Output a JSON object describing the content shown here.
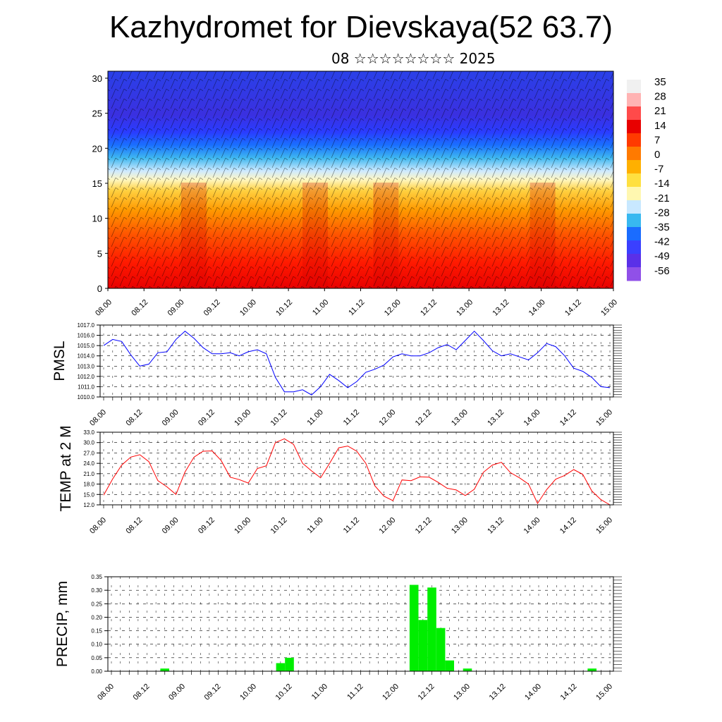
{
  "title": "Kazhydromet for Dievskaya(52 63.7)",
  "subtitle": "08 ☆☆☆☆☆☆☆☆ 2025",
  "chart_data": [
    {
      "type": "heatmap",
      "title": "",
      "x_ticks": [
        "08.00",
        "08.12",
        "09.00",
        "09.12",
        "10.00",
        "10.12",
        "11.00",
        "11.12",
        "12.00",
        "12.12",
        "13.00",
        "13.12",
        "14.00",
        "14.12",
        "15.00"
      ],
      "ylim": [
        0,
        31
      ],
      "y_ticks": [
        "0",
        "5",
        "10",
        "15",
        "20",
        "25",
        "30"
      ],
      "colorbar_labels": [
        "35",
        "28",
        "21",
        "14",
        "7",
        "0",
        "-7",
        "-14",
        "-21",
        "-28",
        "-35",
        "-42",
        "-49",
        "-56"
      ],
      "colorbar_colors": [
        "#f0f0f0",
        "#ffb3b3",
        "#ff4a4a",
        "#e80000",
        "#ff3a00",
        "#ff7a00",
        "#ffb000",
        "#ffe040",
        "#fff7b0",
        "#c8e8ff",
        "#38b8f0",
        "#1a6cff",
        "#3a40ff",
        "#5a30e8",
        "#9050e8"
      ],
      "temperature_profile": [
        {
          "height": 0,
          "temp": 24
        },
        {
          "height": 5,
          "temp": 20
        },
        {
          "height": 10,
          "temp": 8
        },
        {
          "height": 15,
          "temp": -14
        },
        {
          "height": 20,
          "temp": -42
        },
        {
          "height": 25,
          "temp": -56
        },
        {
          "height": 30,
          "temp": -56
        }
      ]
    },
    {
      "type": "line",
      "ylabel": "PMSL",
      "ylim": [
        1010.0,
        1017.0
      ],
      "y_ticks": [
        "1010.0",
        "1011.0",
        "1012.0",
        "1013.0",
        "1014.0",
        "1015.0",
        "1016.0",
        "1017.0"
      ],
      "x_ticks": [
        "08.00",
        "08.12",
        "09.00",
        "09.12",
        "10.00",
        "10.12",
        "11.00",
        "11.12",
        "12.00",
        "12.12",
        "13.00",
        "13.12",
        "14.00",
        "14.12",
        "15.00"
      ],
      "color": "#0000ff",
      "values": [
        1015.0,
        1015.6,
        1015.4,
        1014.1,
        1013.0,
        1013.2,
        1014.3,
        1014.4,
        1015.6,
        1016.4,
        1015.7,
        1014.8,
        1014.2,
        1014.2,
        1014.3,
        1014.0,
        1014.4,
        1014.6,
        1014.2,
        1011.9,
        1010.5,
        1010.5,
        1010.7,
        1010.2,
        1011.0,
        1012.2,
        1011.6,
        1010.9,
        1011.5,
        1012.4,
        1012.7,
        1013.1,
        1013.9,
        1014.2,
        1014.0,
        1014.0,
        1014.3,
        1014.8,
        1015.1,
        1014.6,
        1015.5,
        1016.4,
        1015.5,
        1014.5,
        1014.0,
        1014.2,
        1013.9,
        1013.6,
        1014.3,
        1015.2,
        1014.9,
        1014.0,
        1012.8,
        1012.5,
        1011.9,
        1011.0,
        1010.9
      ]
    },
    {
      "type": "line",
      "ylabel": "TEMP at 2 M",
      "ylim": [
        12.0,
        33.0
      ],
      "y_ticks": [
        "12.0",
        "15.0",
        "18.0",
        "21.0",
        "24.0",
        "27.0",
        "30.0",
        "33.0"
      ],
      "x_ticks": [
        "08.00",
        "08.12",
        "09.00",
        "09.12",
        "10.00",
        "10.12",
        "11.00",
        "11.12",
        "12.00",
        "12.12",
        "13.00",
        "13.12",
        "14.00",
        "14.12",
        "15.00"
      ],
      "color": "#ff0000",
      "values": [
        14.8,
        19.5,
        23.5,
        25.8,
        26.5,
        24.5,
        19.0,
        17.2,
        15.0,
        21.5,
        25.8,
        27.5,
        27.6,
        24.8,
        20.0,
        19.3,
        18.3,
        22.5,
        23.3,
        30.0,
        31.1,
        29.5,
        24.0,
        21.8,
        19.8,
        24.0,
        28.5,
        29.0,
        27.5,
        24.0,
        17.5,
        14.5,
        13.2,
        19.2,
        19.0,
        20.1,
        20.0,
        18.5,
        16.8,
        16.3,
        14.7,
        16.5,
        21.4,
        23.5,
        24.3,
        21.3,
        19.8,
        18.0,
        12.4,
        16.4,
        19.4,
        20.5,
        22.2,
        20.8,
        16.0,
        13.5,
        12.0
      ]
    },
    {
      "type": "bar",
      "ylabel": "PRECIP, mm",
      "ylim": [
        0.0,
        0.35
      ],
      "y_ticks": [
        "0.00",
        "0.05",
        "0.10",
        "0.15",
        "0.20",
        "0.25",
        "0.30",
        "0.35"
      ],
      "x_ticks": [
        "08.00",
        "08.12",
        "09.00",
        "09.12",
        "10.00",
        "10.12",
        "11.00",
        "11.12",
        "12.00",
        "12.12",
        "13.00",
        "13.12",
        "14.00",
        "14.12",
        "15.00"
      ],
      "color": "#00ee00",
      "values": [
        0,
        0,
        0,
        0,
        0,
        0,
        0.01,
        0,
        0,
        0,
        0,
        0,
        0,
        0,
        0,
        0,
        0,
        0,
        0,
        0.03,
        0.05,
        0,
        0,
        0,
        0,
        0,
        0,
        0,
        0,
        0,
        0,
        0,
        0,
        0,
        0.32,
        0.19,
        0.31,
        0.16,
        0.04,
        0,
        0.01,
        0,
        0,
        0,
        0,
        0,
        0,
        0,
        0,
        0,
        0,
        0,
        0,
        0,
        0.01,
        0,
        0
      ]
    }
  ]
}
